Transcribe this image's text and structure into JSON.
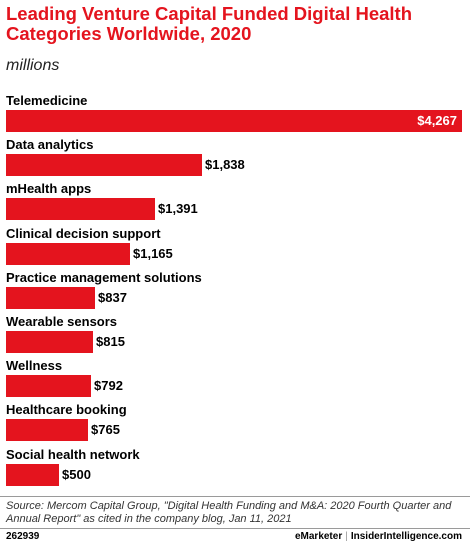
{
  "chart_data": {
    "type": "bar",
    "orientation": "horizontal",
    "title": "Leading Venture Capital Funded Digital Health Categories Worldwide, 2020",
    "subtitle": "millions",
    "categories": [
      "Telemedicine",
      "Data analytics",
      "mHealth apps",
      "Clinical decision support",
      "Practice management solutions",
      "Wearable sensors",
      "Wellness",
      "Healthcare booking",
      "Social health network"
    ],
    "values": [
      4267,
      1838,
      1391,
      1165,
      837,
      815,
      792,
      765,
      500
    ],
    "value_labels": [
      "$4,267",
      "$1,838",
      "$1,391",
      "$1,165",
      "$837",
      "$815",
      "$792",
      "$765",
      "$500"
    ],
    "xlim": [
      0,
      4267
    ],
    "grid": false,
    "bar_color": "#e4141e"
  },
  "source": "Source: Mercom Capital Group, \"Digital Health Funding and M&A: 2020 Fourth Quarter and Annual Report\" as cited in the company blog, Jan 11, 2021",
  "footer": {
    "chart_id": "262939",
    "brand_left": "eMarketer",
    "separator": "|",
    "brand_right": "InsiderIntelligence.com"
  }
}
